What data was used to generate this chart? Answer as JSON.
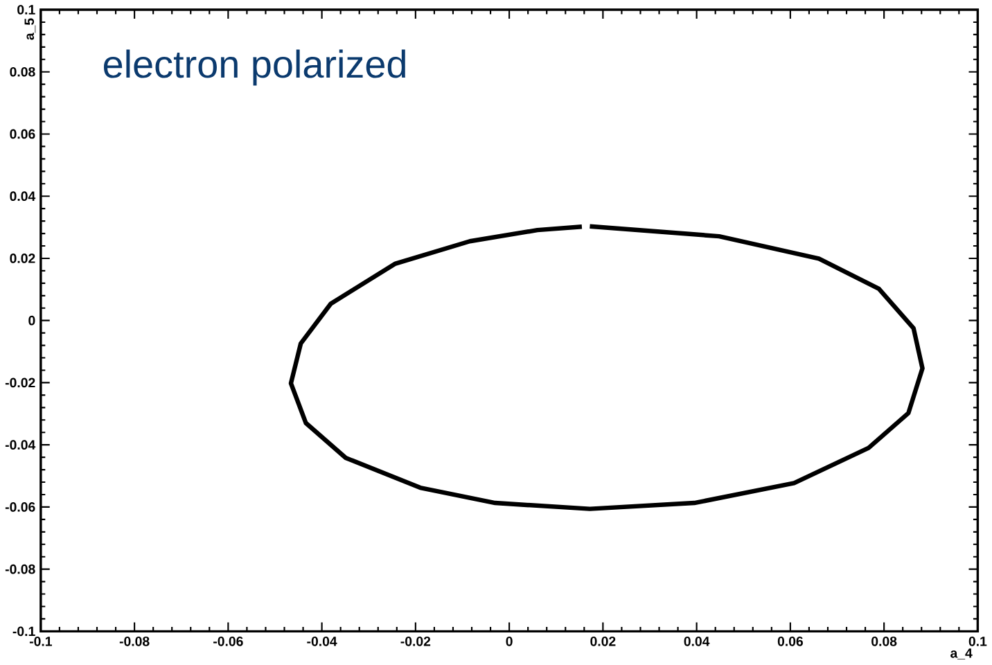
{
  "chart_data": {
    "type": "line",
    "title": "electron polarized",
    "xlabel": "a_4",
    "ylabel": "a_5",
    "xlim": [
      -0.1,
      0.1
    ],
    "ylim": [
      -0.1,
      0.1
    ],
    "xticks": [
      -0.1,
      -0.08,
      -0.06,
      -0.04,
      -0.02,
      0,
      0.02,
      0.04,
      0.06,
      0.08,
      0.1
    ],
    "yticks": [
      -0.1,
      -0.08,
      -0.06,
      -0.04,
      -0.02,
      0,
      0.02,
      0.04,
      0.06,
      0.08,
      0.1
    ],
    "grid": false,
    "marker": "none",
    "line_style": "solid",
    "series": [
      {
        "color": "#000000",
        "x": [
          0.0172,
          0.0448,
          0.0661,
          0.0789,
          0.0863,
          0.0882,
          0.0852,
          0.0767,
          0.0608,
          0.0395,
          0.0172,
          -0.003,
          -0.019,
          -0.0349,
          -0.0434,
          -0.0466,
          -0.0445,
          -0.0381,
          -0.0243,
          -0.0084,
          0.006,
          0.0155
        ],
        "values": [
          0.0303,
          0.0271,
          0.0199,
          0.0102,
          -0.0025,
          -0.0154,
          -0.0298,
          -0.041,
          -0.0523,
          -0.0587,
          -0.0606,
          -0.0587,
          -0.0538,
          -0.0442,
          -0.033,
          -0.0202,
          -0.0074,
          0.0054,
          0.0183,
          0.0255,
          0.0291,
          0.0302
        ]
      }
    ]
  }
}
